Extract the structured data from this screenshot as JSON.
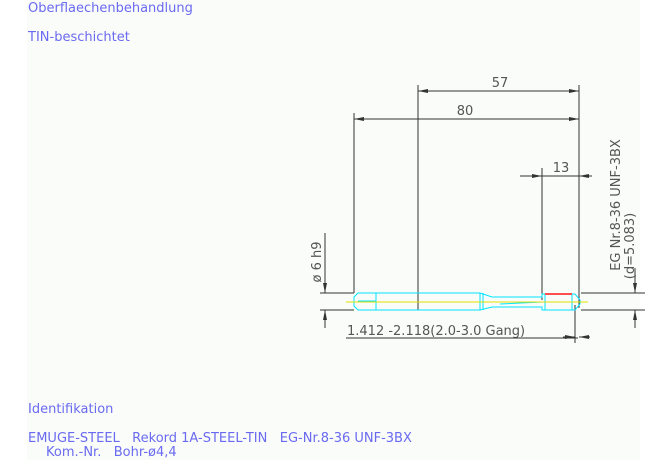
{
  "notes": {
    "surface_heading": "Oberflaechenbehandlung",
    "surface_value": "TIN-beschichtet",
    "ident_heading": "Identifikation",
    "ident_line1": "EMUGE-STEEL   Rekord 1A-STEEL-TIN   EG-Nr.8-36 UNF-3BX",
    "ident_line2": "Kom.-Nr.   Bohr-ø4,4"
  },
  "dimensions": {
    "thread_length": "57",
    "total_length": "80",
    "chamfer_length": "13",
    "shank_diameter": "ø 6 h9",
    "thread_designation": "EG Nr.8-36 UNF-3BX",
    "thread_diameter": "(d=5.083)",
    "chamfer_range": "1.412 -2.118(2.0-3.0 Gang)"
  },
  "colors": {
    "text": "#6a6af0",
    "tool_outline": "#00e5ff",
    "centerline": "#e0e000",
    "coating_mark": "#ff5050",
    "dimension_lines": "#333333"
  }
}
